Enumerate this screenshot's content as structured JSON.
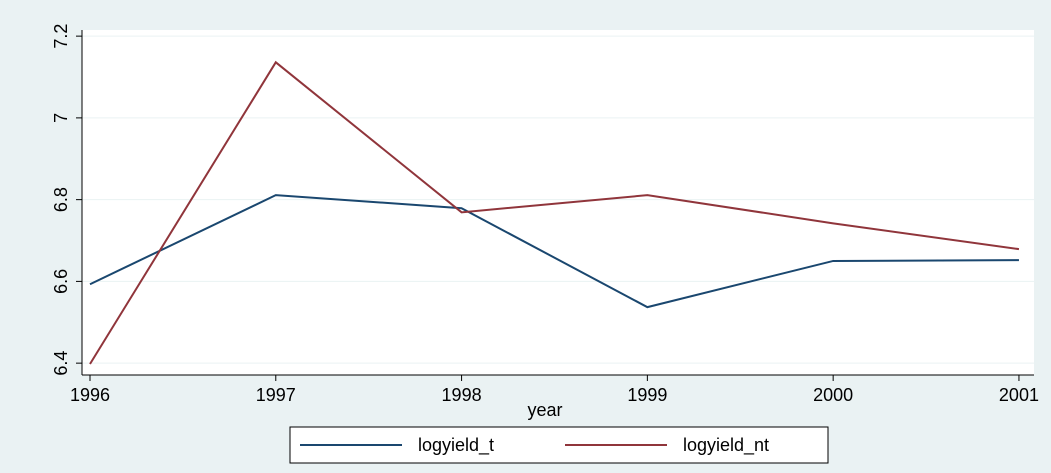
{
  "chart_data": {
    "type": "line",
    "x": [
      1996,
      1997,
      1998,
      1999,
      2000,
      2001
    ],
    "x_label": "year",
    "series": [
      {
        "name": "logyield_t",
        "color": "#1a476f",
        "values": [
          6.593,
          6.811,
          6.779,
          6.537,
          6.65,
          6.652
        ]
      },
      {
        "name": "logyield_nt",
        "color": "#90353b",
        "values": [
          6.398,
          7.136,
          6.769,
          6.811,
          6.742,
          6.679
        ]
      }
    ],
    "xlim": [
      1995.957,
      2001.081
    ],
    "xticks": [
      1996,
      1997,
      1998,
      1999,
      2000,
      2001
    ],
    "ylim": [
      6.371,
      7.215
    ],
    "yticks": [
      6.4,
      6.6,
      6.8,
      7,
      7.2
    ],
    "grid": true,
    "legend": "bottom"
  }
}
